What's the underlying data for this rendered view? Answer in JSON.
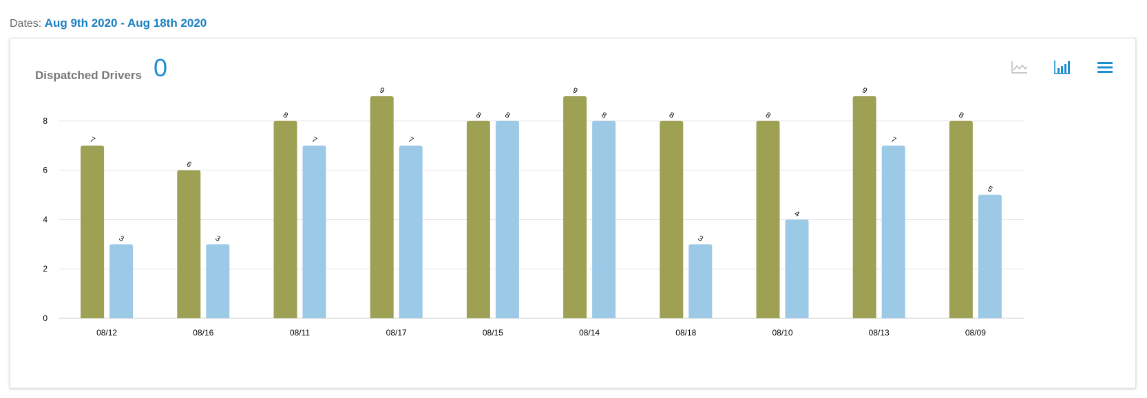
{
  "dates": {
    "label": "Dates:",
    "value": "Aug 9th 2020 - Aug 18th 2020"
  },
  "card": {
    "title": "Dispatched Drivers",
    "metric": "0"
  },
  "toolbar": {
    "icons": [
      "line-chart-icon",
      "bar-chart-icon",
      "menu-icon"
    ],
    "active": "bar-chart-icon"
  },
  "colors": {
    "series1": "#9ea054",
    "series2": "#9bc9e6",
    "accent": "#1d8fd0",
    "grid": "#e6e6e6"
  },
  "chart_data": {
    "type": "bar",
    "categories": [
      "08/12",
      "08/16",
      "08/11",
      "08/17",
      "08/15",
      "08/14",
      "08/18",
      "08/10",
      "08/13",
      "08/09"
    ],
    "series": [
      {
        "values": [
          7,
          6,
          8,
          9,
          8,
          9,
          8,
          8,
          9,
          8
        ]
      },
      {
        "values": [
          3,
          3,
          7,
          7,
          8,
          8,
          3,
          4,
          7,
          5
        ]
      }
    ],
    "yticks": [
      0,
      2,
      4,
      6,
      8
    ],
    "ylim": [
      0,
      9
    ],
    "grid": true,
    "legend": "none",
    "data_labels": true
  }
}
